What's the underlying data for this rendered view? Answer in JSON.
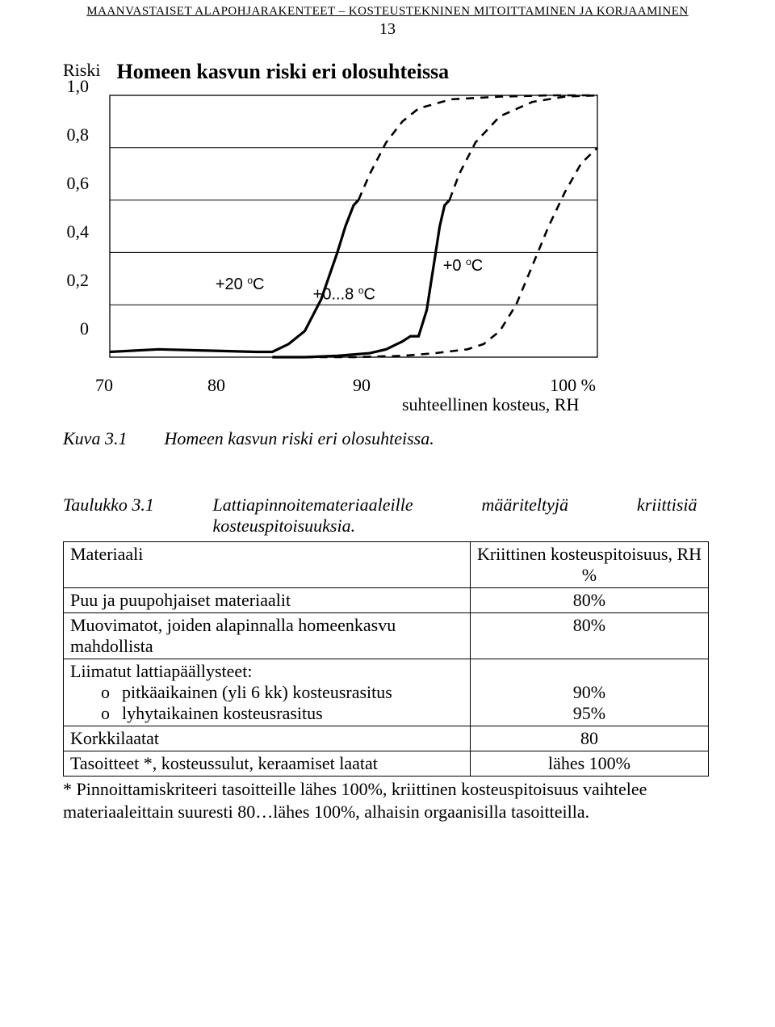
{
  "header": {
    "running": "MAANVASTAISET ALAPOHJARAKENTEET – KOSTEUSTEKNINEN MITOITTAMINEN JA KORJAAMINEN",
    "page": "13"
  },
  "chart": {
    "type": "line",
    "title": "Homeen kasvun riski eri olosuhteissa",
    "y_axis_label": "Riski",
    "line_solid_width": 3.2,
    "line_dashed_width": 2.6,
    "dash": "10,8",
    "ylim": [
      0,
      1.0
    ],
    "xlim": [
      70,
      100
    ],
    "yticks": [
      "1,0",
      "0,8",
      "0,6",
      "0,4",
      "0,2",
      "0"
    ],
    "xticks": [
      "70",
      "80",
      "90",
      "100 %"
    ],
    "x_label": "suhteellinen kosteus, RH",
    "annot": [
      {
        "txt": "+20 ",
        "sup": "o",
        "tail": "C"
      },
      {
        "txt": "+0...8 ",
        "sup": "o",
        "tail": "C"
      },
      {
        "txt": "+0 ",
        "sup": "o",
        "tail": "C"
      }
    ],
    "caption_num": "Kuva 3.1",
    "caption_txt": "Homeen kasvun riski eri olosuhteissa.",
    "series": [
      {
        "style": "solid",
        "pts": [
          [
            70,
            0.02
          ],
          [
            73,
            0.03
          ],
          [
            76,
            0.025
          ],
          [
            79,
            0.02
          ],
          [
            80,
            0.02
          ],
          [
            81,
            0.05
          ],
          [
            82,
            0.1
          ],
          [
            83,
            0.22
          ],
          [
            84,
            0.4
          ],
          [
            84.5,
            0.5
          ],
          [
            85,
            0.58
          ],
          [
            85.3,
            0.6
          ]
        ]
      },
      {
        "style": "dashed",
        "pts": [
          [
            85.3,
            0.6
          ],
          [
            86,
            0.7
          ],
          [
            87,
            0.82
          ],
          [
            88,
            0.9
          ],
          [
            89,
            0.95
          ],
          [
            91,
            0.985
          ],
          [
            94,
            0.995
          ],
          [
            97,
            1.0
          ],
          [
            100,
            1.0
          ]
        ]
      },
      {
        "style": "solid",
        "pts": [
          [
            80,
            0.0
          ],
          [
            82,
            0.0
          ],
          [
            84,
            0.005
          ],
          [
            86,
            0.015
          ],
          [
            87,
            0.03
          ],
          [
            88,
            0.06
          ],
          [
            88.5,
            0.08
          ],
          [
            89,
            0.08
          ],
          [
            89.5,
            0.18
          ],
          [
            90,
            0.38
          ],
          [
            90.3,
            0.5
          ],
          [
            90.6,
            0.58
          ],
          [
            90.9,
            0.6
          ]
        ]
      },
      {
        "style": "dashed",
        "pts": [
          [
            90.9,
            0.6
          ],
          [
            91.5,
            0.7
          ],
          [
            92.5,
            0.82
          ],
          [
            94,
            0.92
          ],
          [
            96,
            0.975
          ],
          [
            98,
            0.995
          ],
          [
            100,
            1.0
          ]
        ]
      },
      {
        "style": "dashed",
        "pts": [
          [
            82,
            0.0
          ],
          [
            85,
            0.0
          ],
          [
            88,
            0.005
          ],
          [
            90,
            0.015
          ],
          [
            92,
            0.03
          ],
          [
            93,
            0.05
          ],
          [
            94,
            0.1
          ],
          [
            95,
            0.2
          ],
          [
            96,
            0.35
          ],
          [
            97,
            0.5
          ],
          [
            98,
            0.63
          ],
          [
            99,
            0.74
          ],
          [
            100,
            0.8
          ]
        ]
      }
    ]
  },
  "table": {
    "caption_num": "Taulukko 3.1",
    "caption_italic": "Lattiapinnoitemateriaaleille      määriteltyjä      kriittisiä kosteuspitoisuuksia.",
    "head": {
      "c1": "Materiaali",
      "c2a": "Kriittinen kosteuspitoisuus, RH",
      "c2b": "%"
    },
    "rows": [
      {
        "c1": "Puu ja puupohjaiset materiaalit",
        "c2": "80%"
      },
      {
        "c1a": "Muovimatot, joiden alapinnalla homeenkasvu",
        "c1b": "mahdollista",
        "c2": "80%"
      },
      {
        "c1": "Liimatut lattiapäällysteet:",
        "sub": [
          {
            "b": "o",
            "t": "pitkäaikainen (yli 6 kk) kosteusrasitus",
            "v": "90%"
          },
          {
            "b": "o",
            "t": "lyhytaikainen kosteusrasitus",
            "v": "95%"
          }
        ]
      },
      {
        "c1": "Korkkilaatat",
        "c2": "80"
      },
      {
        "c1": "Tasoitteet *, kosteussulut, keraamiset laatat",
        "c2": "lähes 100%"
      }
    ],
    "footnote": "* Pinnoittamiskriteeri tasoitteille lähes 100%, kriittinen kosteuspitoisuus vaihtelee materiaaleittain suuresti 80…lähes 100%, alhaisin orgaanisilla tasoitteilla."
  }
}
